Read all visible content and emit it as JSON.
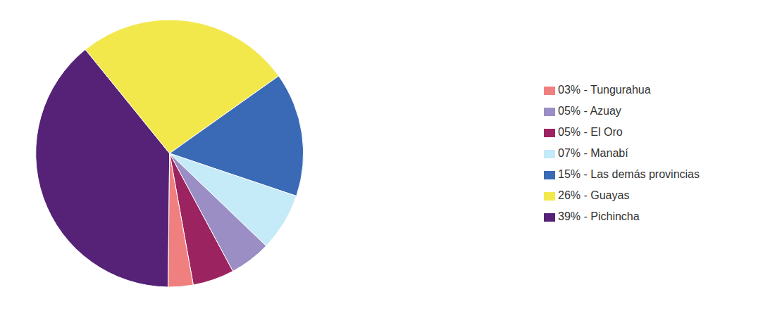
{
  "chart_data": {
    "type": "pie",
    "categories": [
      "39% - Pichincha",
      "26% - Guayas",
      "15% - Las demás provincias",
      "07% - Manabí",
      "05% - Azuay",
      "05% - El Oro",
      "03% - Tungurahua"
    ],
    "values": [
      39,
      26,
      15,
      7,
      5,
      5,
      3
    ],
    "colors": [
      "#552277",
      "#F2E84B",
      "#3A6AB5",
      "#C5EAF8",
      "#9B8EC4",
      "#9B2360",
      "#F08080"
    ],
    "legend": "right"
  }
}
